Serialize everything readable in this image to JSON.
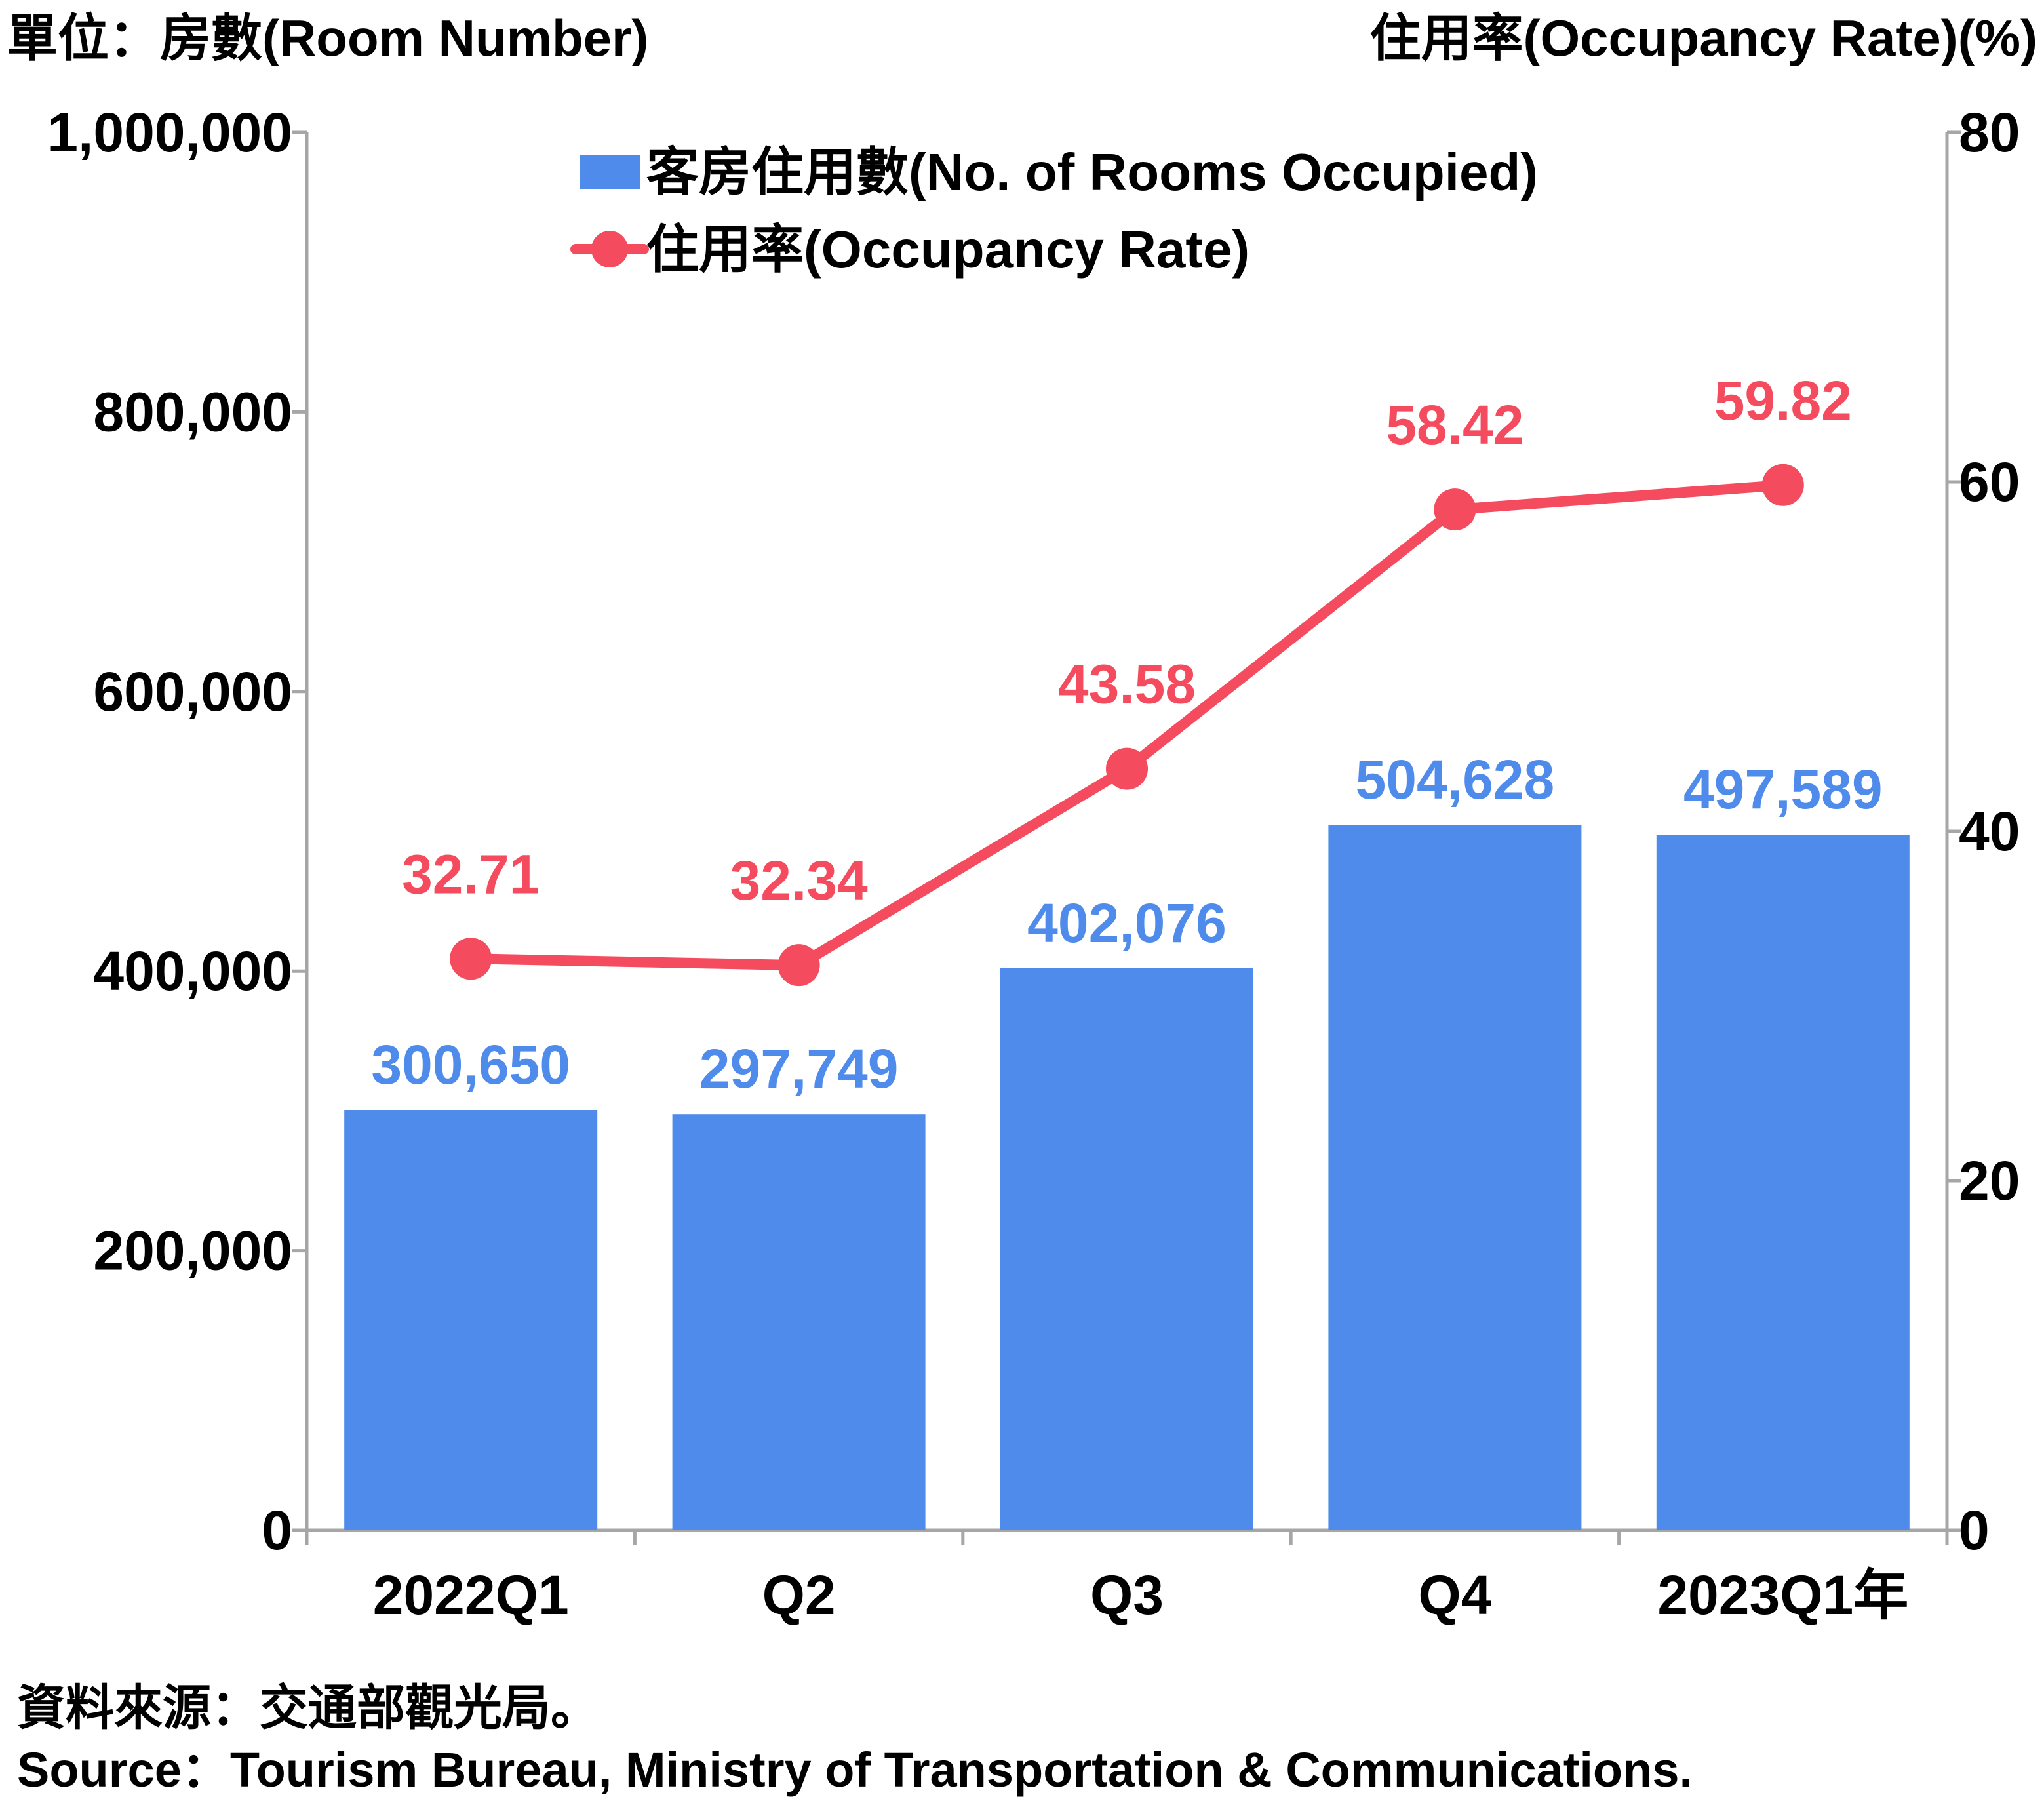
{
  "chart_data": {
    "type": "bar",
    "left_unit_label": "單位：房數(Room Number)",
    "right_unit_label": "住用率(Occupancy Rate)(%)",
    "categories": [
      "2022Q1",
      "Q2",
      "Q3",
      "Q4",
      "2023Q1年"
    ],
    "left_axis": {
      "ylim": [
        0,
        1000000
      ],
      "ticks": [
        "0",
        "200,000",
        "400,000",
        "600,000",
        "800,000",
        "1,000,000"
      ]
    },
    "right_axis": {
      "ylim": [
        0,
        80
      ],
      "ticks": [
        "0",
        "20",
        "40",
        "60",
        "80"
      ]
    },
    "grid": false,
    "legend_position": "top-center",
    "series": [
      {
        "name": "客房住用數(No. of Rooms Occupied)",
        "type": "bar",
        "axis": "left",
        "color": "#4F8BEA",
        "values": [
          300650,
          297749,
          402076,
          504628,
          497589
        ],
        "labels": [
          "300,650",
          "297,749",
          "402,076",
          "504,628",
          "497,589"
        ]
      },
      {
        "name": "住用率(Occupancy Rate)",
        "type": "line",
        "axis": "right",
        "color": "#F44B5E",
        "values": [
          32.71,
          32.34,
          43.58,
          58.42,
          59.82
        ],
        "labels": [
          "32.71",
          "32.34",
          "43.58",
          "58.42",
          "59.82"
        ]
      }
    ]
  },
  "source": {
    "zh": "資料來源：交通部觀光局。",
    "en": "Source：Tourism Bureau, Ministry of Transportation & Communications."
  },
  "colors": {
    "axis": "#A6A6A6",
    "text": "#000000"
  }
}
